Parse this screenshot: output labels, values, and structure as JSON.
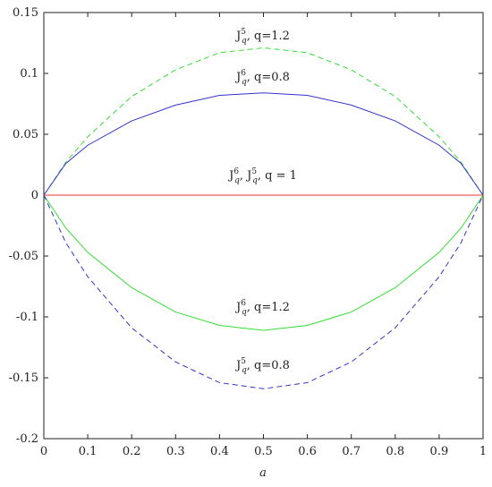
{
  "chart_data": {
    "type": "line",
    "xlabel": "a",
    "x": [
      0,
      0.05,
      0.1,
      0.2,
      0.3,
      0.4,
      0.5,
      0.6,
      0.7,
      0.8,
      0.9,
      0.95,
      1
    ],
    "series": [
      {
        "color": "#33dd33",
        "dashed": true,
        "values": [
          0,
          0.027,
          0.048,
          0.081,
          0.103,
          0.117,
          0.121,
          0.117,
          0.103,
          0.081,
          0.048,
          0.027,
          0
        ]
      },
      {
        "color": "#3333cc",
        "dashed": false,
        "values": [
          0,
          0.026,
          0.041,
          0.061,
          0.074,
          0.082,
          0.084,
          0.082,
          0.074,
          0.061,
          0.041,
          0.026,
          0
        ]
      },
      {
        "color": "#ee3333",
        "dashed": false,
        "values": [
          0,
          0,
          0,
          0,
          0,
          0,
          0,
          0,
          0,
          0,
          0,
          0,
          0
        ]
      },
      {
        "color": "#33dd33",
        "dashed": false,
        "values": [
          0,
          -0.027,
          -0.047,
          -0.076,
          -0.096,
          -0.107,
          -0.111,
          -0.107,
          -0.096,
          -0.076,
          -0.047,
          -0.027,
          0
        ]
      },
      {
        "color": "#3333cc",
        "dashed": true,
        "values": [
          0,
          -0.039,
          -0.067,
          -0.109,
          -0.137,
          -0.154,
          -0.159,
          -0.154,
          -0.137,
          -0.109,
          -0.067,
          -0.039,
          0
        ]
      }
    ],
    "annotations": [
      [
        {
          "t": "J"
        },
        {
          "sup": "5"
        },
        {
          "sub": "q"
        },
        {
          "t": ", q=1.2"
        }
      ],
      [
        {
          "t": "J"
        },
        {
          "sup": "6"
        },
        {
          "sub": "q"
        },
        {
          "t": ", q=0.8"
        }
      ],
      [
        {
          "t": "J"
        },
        {
          "sup": "6"
        },
        {
          "sub": "q"
        },
        {
          "t": ", J"
        },
        {
          "sup": "5"
        },
        {
          "sub": "q"
        },
        {
          "t": ", q = 1"
        }
      ],
      [
        {
          "t": "J"
        },
        {
          "sup": "6"
        },
        {
          "sub": "q"
        },
        {
          "t": ", q=1.2"
        }
      ],
      [
        {
          "t": "J"
        },
        {
          "sup": "5"
        },
        {
          "sub": "q"
        },
        {
          "t": ", q=0.8"
        }
      ]
    ],
    "xlim": [
      0,
      1
    ],
    "xticks": [
      0,
      0.1,
      0.2,
      0.3,
      0.4,
      0.5,
      0.6,
      0.7,
      0.8,
      0.9,
      1
    ],
    "ylim": [
      -0.2,
      0.15
    ],
    "yticks": [
      -0.2,
      -0.15,
      -0.1,
      -0.05,
      0,
      0.05,
      0.1,
      0.15
    ],
    "grid": false
  }
}
